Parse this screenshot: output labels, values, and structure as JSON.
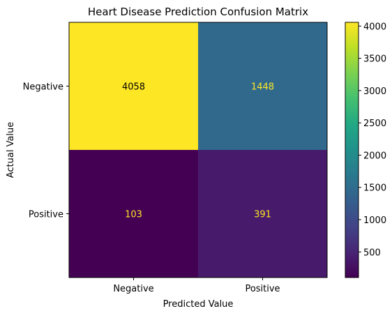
{
  "chart_data": {
    "type": "heatmap",
    "title": "Heart Disease Prediction Confusion Matrix",
    "xlabel": "Predicted Value",
    "ylabel": "Actual Value",
    "x_categories": [
      "Negative",
      "Positive"
    ],
    "y_categories": [
      "Negative",
      "Positive"
    ],
    "values": [
      [
        4058,
        1448
      ],
      [
        103,
        391
      ]
    ],
    "colormap": "viridis",
    "colorbar": {
      "range": [
        103,
        4058
      ],
      "ticks": [
        500,
        1000,
        1500,
        2000,
        2500,
        3000,
        3500,
        4000
      ]
    },
    "text_colors": {
      "dark": "#000000",
      "light": "#fde725"
    },
    "grid": false
  }
}
